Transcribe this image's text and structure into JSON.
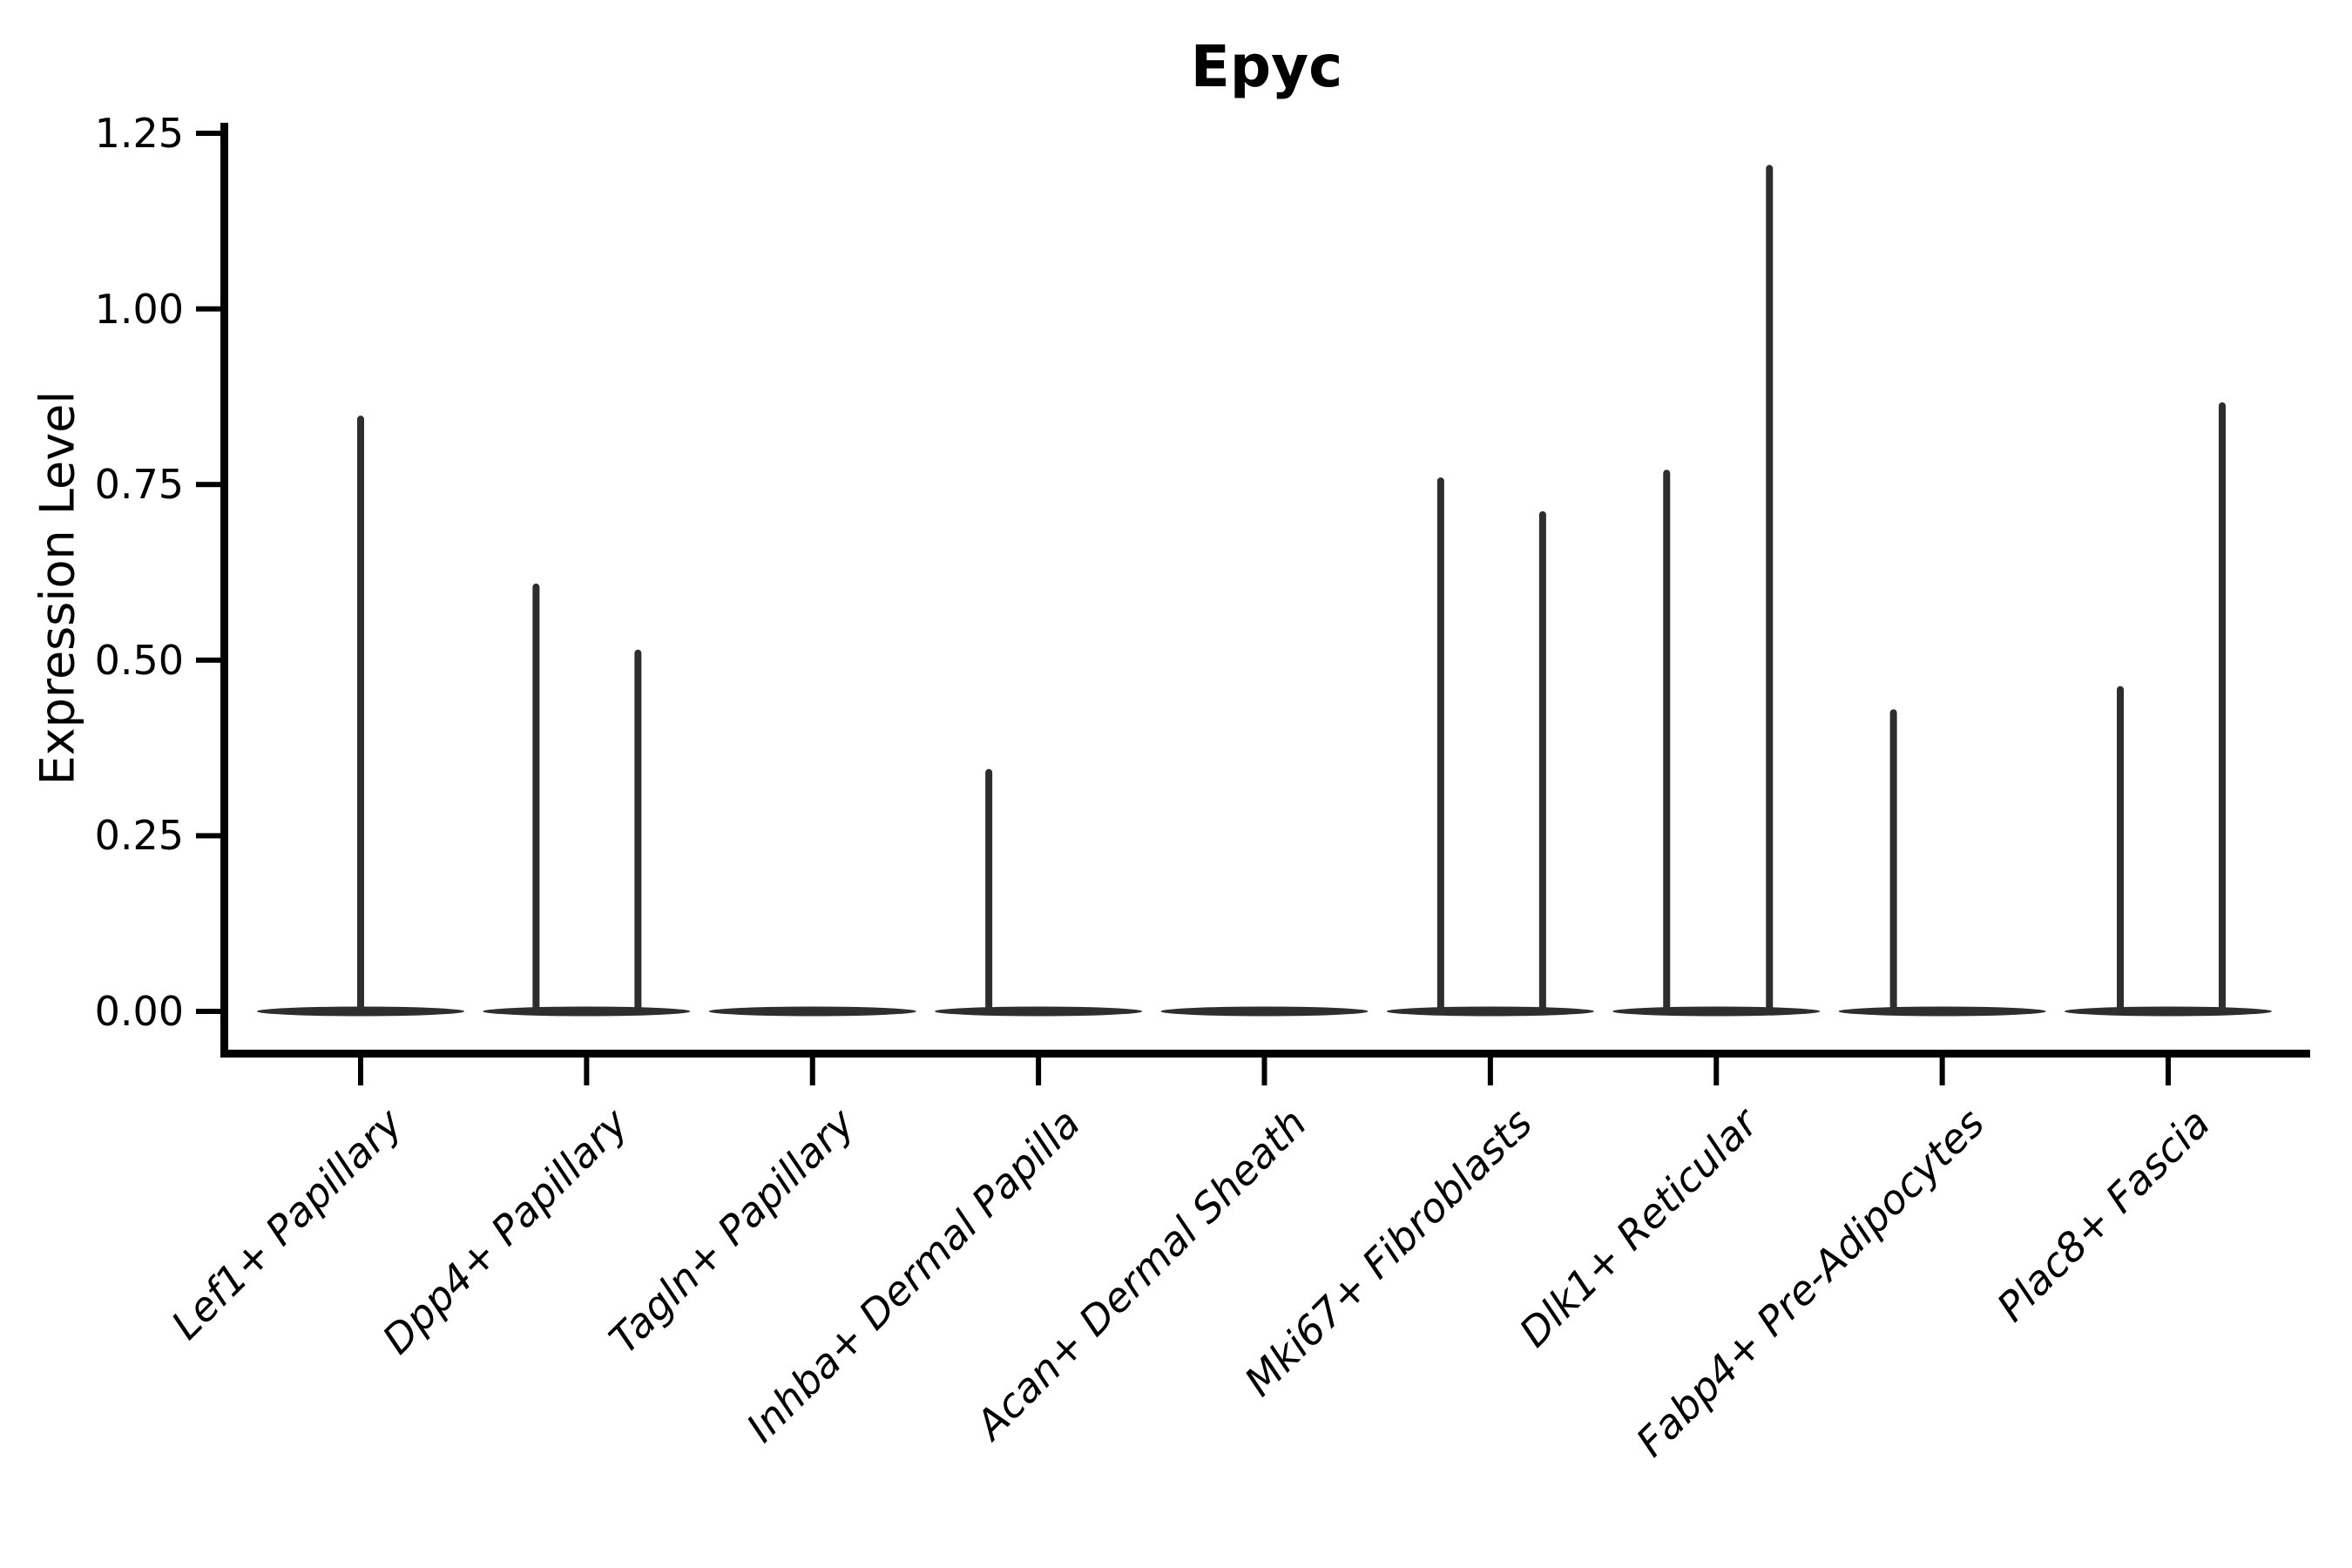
{
  "chart_data": {
    "type": "violin",
    "title": "Epyc",
    "ylabel": "Expression Level",
    "xlabel": "",
    "ytick_labels": [
      "0.00",
      "0.25",
      "0.50",
      "0.75",
      "1.00",
      "1.25"
    ],
    "ytick_values": [
      0.0,
      0.25,
      0.5,
      0.75,
      1.0,
      1.25
    ],
    "ylim": [
      -0.06,
      1.265
    ],
    "grid": false,
    "legend": "none",
    "categories": [
      "Lef1+ Papillary",
      "Dpp4+ Papillary",
      "Tagln+ Papillary",
      "Inhba+ Dermal Papilla",
      "Acan+ Dermal Sheath",
      "Mki67+ Fibroblasts",
      "Dlk1+ Reticular",
      "Fabp4+ Pre-Adipocytes",
      "Plac8+ Fascia"
    ],
    "groups": [
      {
        "category": "Lef1+ Papillary",
        "spikes": [
          {
            "dx": 0,
            "max": 0.848
          }
        ]
      },
      {
        "category": "Dpp4+ Papillary",
        "spikes": [
          {
            "dx": -58,
            "max": 0.609
          },
          {
            "dx": 59,
            "max": 0.515
          }
        ]
      },
      {
        "category": "Tagln+ Papillary",
        "spikes": []
      },
      {
        "category": "Inhba+ Dermal Papilla",
        "spikes": [
          {
            "dx": -57,
            "max": 0.345
          }
        ]
      },
      {
        "category": "Acan+ Dermal Sheath",
        "spikes": []
      },
      {
        "category": "Mki67+ Fibroblasts",
        "spikes": [
          {
            "dx": -57,
            "max": 0.76
          },
          {
            "dx": 60,
            "max": 0.712
          }
        ]
      },
      {
        "category": "Dlk1+ Reticular",
        "spikes": [
          {
            "dx": -57,
            "max": 0.771
          },
          {
            "dx": 61,
            "max": 1.205
          }
        ]
      },
      {
        "category": "Fabp4+ Pre-Adipocytes",
        "spikes": [
          {
            "dx": -56,
            "max": 0.43
          }
        ]
      },
      {
        "category": "Plac8+ Fascia",
        "spikes": [
          {
            "dx": -55,
            "max": 0.463
          },
          {
            "dx": 62,
            "max": 0.867
          }
        ]
      }
    ],
    "colors": {
      "violin": "#2e2e2e",
      "axis": "#000000",
      "text": "#000000",
      "background": "#ffffff"
    }
  }
}
